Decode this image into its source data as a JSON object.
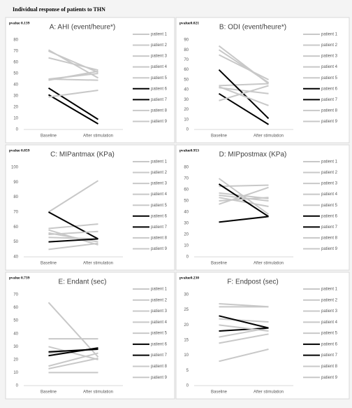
{
  "title": "Individual response of patients to THN",
  "chart_data": [
    {
      "type": "line",
      "title": "A: AHI (event/heure*)",
      "annotation": "pvalue 0.139",
      "categories": [
        "Baseline",
        "After stimulation"
      ],
      "ylim": [
        0,
        80
      ],
      "yticks": [
        0,
        10,
        20,
        30,
        40,
        50,
        60,
        70,
        80
      ],
      "series": [
        {
          "name": "patient 1",
          "color": "#c8c8c8",
          "values": [
            71,
            46
          ]
        },
        {
          "name": "patient 2",
          "color": "#c8c8c8",
          "values": [
            70,
            51
          ]
        },
        {
          "name": "patient 3",
          "color": "#c8c8c8",
          "values": [
            64,
            53
          ]
        },
        {
          "name": "patient 4",
          "color": "#c8c8c8",
          "values": [
            45,
            50
          ]
        },
        {
          "name": "patient 5",
          "color": "#c8c8c8",
          "values": [
            44,
            52
          ]
        },
        {
          "name": "patient 6",
          "color": "#000000",
          "values": [
            37,
            9
          ]
        },
        {
          "name": "patient 7",
          "color": "#000000",
          "values": [
            31,
            5
          ]
        },
        {
          "name": "patient 8",
          "color": "#c8c8c8",
          "values": [
            45,
            44
          ]
        },
        {
          "name": "patient 9",
          "color": "#c8c8c8",
          "values": [
            29,
            35
          ]
        }
      ]
    },
    {
      "type": "line",
      "title": "B: ODI (event/heure*)",
      "annotation": "pvalue0.021",
      "categories": [
        "Baseline",
        "After stimulation"
      ],
      "ylim": [
        0,
        90
      ],
      "yticks": [
        0,
        10,
        20,
        30,
        40,
        50,
        60,
        70,
        80,
        90
      ],
      "series": [
        {
          "name": "patient 1",
          "color": "#c8c8c8",
          "values": [
            84,
            46
          ]
        },
        {
          "name": "patient 2",
          "color": "#c8c8c8",
          "values": [
            80,
            47
          ]
        },
        {
          "name": "patient 3",
          "color": "#c8c8c8",
          "values": [
            75,
            50
          ]
        },
        {
          "name": "patient 4",
          "color": "#c8c8c8",
          "values": [
            44,
            46
          ]
        },
        {
          "name": "patient 5",
          "color": "#c8c8c8",
          "values": [
            42,
            36
          ]
        },
        {
          "name": "patient 6",
          "color": "#000000",
          "values": [
            60,
            11
          ]
        },
        {
          "name": "patient 7",
          "color": "#000000",
          "values": [
            36,
            5
          ]
        },
        {
          "name": "patient 8",
          "color": "#c8c8c8",
          "values": [
            43,
            24
          ]
        },
        {
          "name": "patient 9",
          "color": "#c8c8c8",
          "values": [
            29,
            44
          ]
        }
      ]
    },
    {
      "type": "line",
      "title": "C: MIPantmax (KPa)",
      "annotation": "pvalue 0.859",
      "categories": [
        "Baseline",
        "After stimulation"
      ],
      "ylim": [
        40,
        100
      ],
      "yticks": [
        40,
        50,
        60,
        70,
        80,
        90,
        100
      ],
      "series": [
        {
          "name": "patient 1",
          "color": "#c8c8c8",
          "values": [
            70,
            91
          ]
        },
        {
          "name": "patient 2",
          "color": "#c8c8c8",
          "values": [
            59,
            62
          ]
        },
        {
          "name": "patient 3",
          "color": "#c8c8c8",
          "values": [
            58,
            48
          ]
        },
        {
          "name": "patient 4",
          "color": "#c8c8c8",
          "values": [
            56,
            50
          ]
        },
        {
          "name": "patient 5",
          "color": "#c8c8c8",
          "values": [
            53,
            52
          ]
        },
        {
          "name": "patient 6",
          "color": "#000000",
          "values": [
            70,
            52
          ]
        },
        {
          "name": "patient 7",
          "color": "#000000",
          "values": [
            50,
            52
          ]
        },
        {
          "name": "patient 8",
          "color": "#c8c8c8",
          "values": [
            55,
            57
          ]
        },
        {
          "name": "patient 9",
          "color": "#c8c8c8",
          "values": [
            45,
            49
          ]
        }
      ]
    },
    {
      "type": "line",
      "title": "D: MIPpostmax (KPa)",
      "annotation": "pvalue0.953",
      "categories": [
        "Baseline",
        "After stimulation"
      ],
      "ylim": [
        0,
        80
      ],
      "yticks": [
        0,
        10,
        20,
        30,
        40,
        50,
        60,
        70,
        80
      ],
      "series": [
        {
          "name": "patient 1",
          "color": "#c8c8c8",
          "values": [
            70,
            38
          ]
        },
        {
          "name": "patient 2",
          "color": "#c8c8c8",
          "values": [
            63,
            64
          ]
        },
        {
          "name": "patient 3",
          "color": "#c8c8c8",
          "values": [
            57,
            52
          ]
        },
        {
          "name": "patient 4",
          "color": "#c8c8c8",
          "values": [
            55,
            50
          ]
        },
        {
          "name": "patient 5",
          "color": "#c8c8c8",
          "values": [
            53,
            45
          ]
        },
        {
          "name": "patient 6",
          "color": "#000000",
          "values": [
            65,
            36
          ]
        },
        {
          "name": "patient 7",
          "color": "#000000",
          "values": [
            31,
            36
          ]
        },
        {
          "name": "patient 8",
          "color": "#c8c8c8",
          "values": [
            50,
            53
          ]
        },
        {
          "name": "patient 9",
          "color": "#c8c8c8",
          "values": [
            47,
            62
          ]
        }
      ]
    },
    {
      "type": "line",
      "title": "E: Endant (sec)",
      "annotation": "pvalue 0.739",
      "categories": [
        "Baseline",
        "After stimulation"
      ],
      "ylim": [
        0,
        70
      ],
      "yticks": [
        0,
        10,
        20,
        30,
        40,
        50,
        60,
        70
      ],
      "series": [
        {
          "name": "patient 1",
          "color": "#c8c8c8",
          "values": [
            64,
            22
          ]
        },
        {
          "name": "patient 2",
          "color": "#c8c8c8",
          "values": [
            36,
            36
          ]
        },
        {
          "name": "patient 3",
          "color": "#c8c8c8",
          "values": [
            30,
            20
          ]
        },
        {
          "name": "patient 4",
          "color": "#c8c8c8",
          "values": [
            25,
            28
          ]
        },
        {
          "name": "patient 5",
          "color": "#c8c8c8",
          "values": [
            15,
            25
          ]
        },
        {
          "name": "patient 6",
          "color": "#000000",
          "values": [
            23,
            29
          ]
        },
        {
          "name": "patient 7",
          "color": "#000000",
          "values": [
            26,
            28
          ]
        },
        {
          "name": "patient 8",
          "color": "#c8c8c8",
          "values": [
            13,
            21
          ]
        },
        {
          "name": "patient 9",
          "color": "#c8c8c8",
          "values": [
            10,
            10
          ]
        }
      ]
    },
    {
      "type": "line",
      "title": "F: Endpost (sec)",
      "annotation": "pvalue0.230",
      "categories": [
        "Baseline",
        "After stimulation"
      ],
      "ylim": [
        0,
        30
      ],
      "yticks": [
        0,
        5,
        10,
        15,
        20,
        25,
        30
      ],
      "series": [
        {
          "name": "patient 1",
          "color": "#c8c8c8",
          "values": [
            27,
            26
          ]
        },
        {
          "name": "patient 2",
          "color": "#c8c8c8",
          "values": [
            26,
            26
          ]
        },
        {
          "name": "patient 3",
          "color": "#c8c8c8",
          "values": [
            22,
            21
          ]
        },
        {
          "name": "patient 4",
          "color": "#c8c8c8",
          "values": [
            16,
            19
          ]
        },
        {
          "name": "patient 5",
          "color": "#c8c8c8",
          "values": [
            14,
            17
          ]
        },
        {
          "name": "patient 6",
          "color": "#000000",
          "values": [
            23,
            19
          ]
        },
        {
          "name": "patient 7",
          "color": "#000000",
          "values": [
            18,
            19
          ]
        },
        {
          "name": "patient 8",
          "color": "#c8c8c8",
          "values": [
            8,
            12
          ]
        },
        {
          "name": "patient 9",
          "color": "#c8c8c8",
          "values": [
            20,
            18
          ]
        }
      ]
    }
  ]
}
